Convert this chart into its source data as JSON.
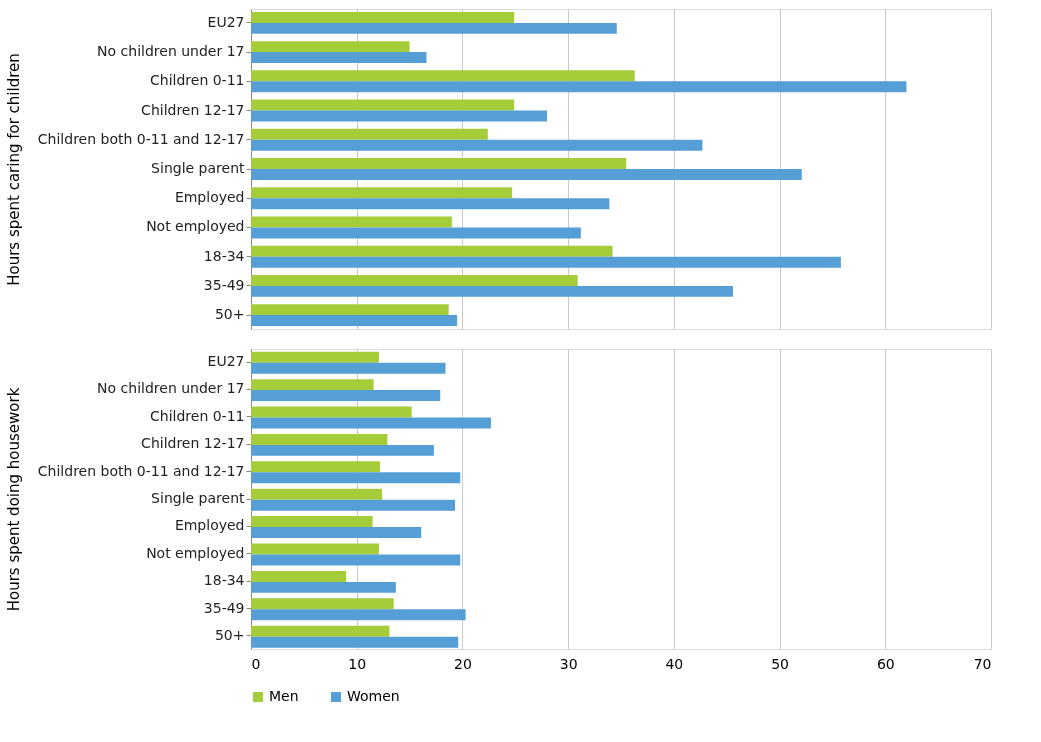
{
  "chart_data": [
    {
      "type": "bar",
      "orientation": "horizontal",
      "ylabel": "Hours spent caring for children",
      "categories": [
        "EU27",
        "No children under 17",
        "Children 0-11",
        "Children 12-17",
        "Children both 0-11 and 12-17",
        "Single parent",
        "Employed",
        "Not employed",
        "18-34",
        "35-49",
        "50+"
      ],
      "series": [
        {
          "name": "Men",
          "color": "#a5cd3a",
          "values": [
            24.9,
            15.0,
            36.3,
            24.9,
            22.4,
            35.5,
            24.7,
            19.0,
            34.2,
            30.9,
            18.7
          ]
        },
        {
          "name": "Women",
          "color": "#559fd6",
          "values": [
            34.6,
            16.6,
            62.0,
            28.0,
            42.7,
            52.1,
            33.9,
            31.2,
            55.8,
            45.6,
            19.5
          ]
        }
      ],
      "xlim": [
        0,
        70
      ],
      "xticks": [
        0,
        10,
        20,
        30,
        40,
        50,
        60,
        70
      ],
      "grid": "x",
      "tick_labels": "y",
      "legend": "bottom"
    },
    {
      "type": "bar",
      "orientation": "horizontal",
      "ylabel": "Hours spent doing housework",
      "categories": [
        "EU27",
        "No children under 17",
        "Children 0-11",
        "Children 12-17",
        "Children both 0-11 and 12-17",
        "Single parent",
        "Employed",
        "Not employed",
        "18-34",
        "35-49",
        "50+"
      ],
      "series": [
        {
          "name": "Men",
          "color": "#a5cd3a",
          "values": [
            12.1,
            11.6,
            15.2,
            12.9,
            12.2,
            12.4,
            11.5,
            12.1,
            9.0,
            13.5,
            13.1
          ]
        },
        {
          "name": "Women",
          "color": "#559fd6",
          "values": [
            18.4,
            17.9,
            22.7,
            17.3,
            19.8,
            19.3,
            16.1,
            19.8,
            13.7,
            20.3,
            19.6
          ]
        }
      ],
      "xlim": [
        0,
        70
      ],
      "xticks": [
        0,
        10,
        20,
        30,
        40,
        50,
        60,
        70
      ],
      "grid": "x",
      "legend": "bottom"
    }
  ]
}
